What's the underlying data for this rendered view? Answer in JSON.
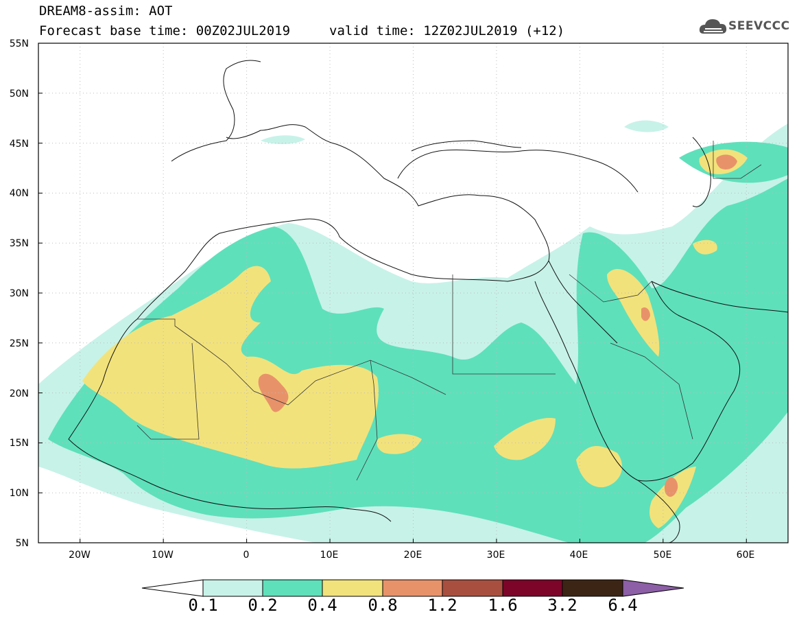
{
  "header": {
    "title": "DREAM8-assim: AOT",
    "base_time": "Forecast base time: 00Z02JUL2019",
    "valid_time": "valid time: 12Z02JUL2019 (+12)"
  },
  "logo": {
    "text": "SEEVCCC",
    "icon": "cloud-icon"
  },
  "axes": {
    "lat_labels": [
      "55N",
      "50N",
      "45N",
      "40N",
      "35N",
      "30N",
      "25N",
      "20N",
      "15N",
      "10N",
      "5N"
    ],
    "lon_labels": [
      "20W",
      "10W",
      "0",
      "10E",
      "20E",
      "30E",
      "40E",
      "50E",
      "60E"
    ],
    "lon_range": [
      -25,
      65
    ],
    "lat_range": [
      5,
      55
    ],
    "grid": "dotted"
  },
  "colorbar": {
    "labels": [
      "0.1",
      "0.2",
      "0.4",
      "0.8",
      "1.2",
      "1.6",
      "3.2",
      "6.4"
    ],
    "colors": [
      "#ffffff",
      "#c7f2e8",
      "#5ee0bb",
      "#f2e27b",
      "#e8926a",
      "#a94f3f",
      "#7c0529",
      "#3d2516",
      "#8c5fa6"
    ]
  }
}
